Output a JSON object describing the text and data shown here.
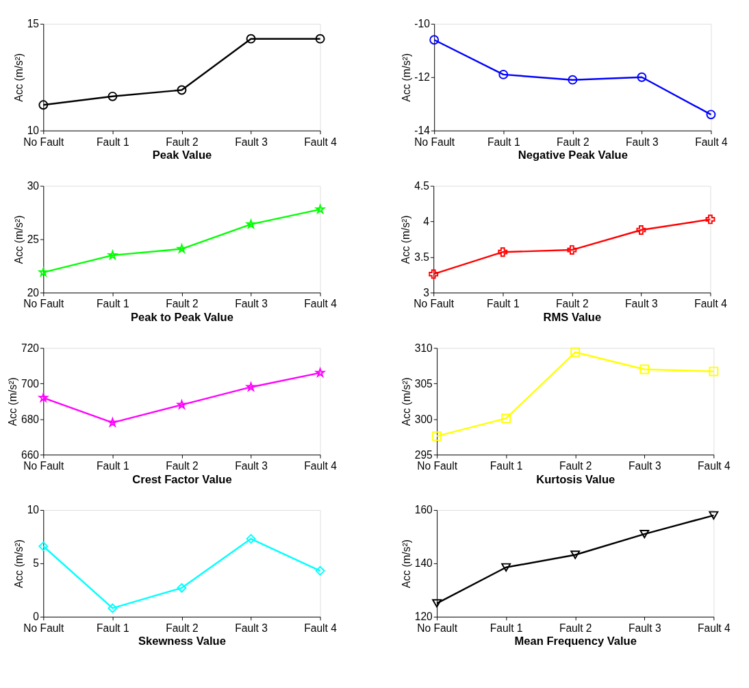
{
  "chart_data": [
    {
      "type": "line",
      "xlabel": "Peak Value",
      "ylabel": "Acc (m/s²)",
      "categories": [
        "No Fault",
        "Fault 1",
        "Fault 2",
        "Fault 3",
        "Fault 4"
      ],
      "series": [
        {
          "color": "#000000",
          "values": [
            11.2,
            11.6,
            11.9,
            14.3,
            14.3
          ]
        }
      ],
      "ylim": [
        10,
        15
      ],
      "yticks": [
        10,
        15
      ],
      "marker": "circle",
      "grid": false
    },
    {
      "type": "line",
      "xlabel": "Negative Peak Value",
      "ylabel": "Acc (m/s²)",
      "categories": [
        "No Fault",
        "Fault 1",
        "Fault 2",
        "Fault 3",
        "Fault 4"
      ],
      "series": [
        {
          "color": "#0000ff",
          "values": [
            -10.6,
            -11.9,
            -12.1,
            -12.0,
            -13.4
          ]
        }
      ],
      "ylim": [
        -14,
        -10
      ],
      "yticks": [
        -14,
        -12,
        -10
      ],
      "marker": "circle",
      "grid": false
    },
    {
      "type": "line",
      "xlabel": "Peak to Peak Value",
      "ylabel": "Acc (m/s²)",
      "categories": [
        "No Fault",
        "Fault 1",
        "Fault 2",
        "Fault 3",
        "Fault 4"
      ],
      "series": [
        {
          "color": "#00ff00",
          "values": [
            21.9,
            23.5,
            24.1,
            26.4,
            27.8
          ]
        }
      ],
      "ylim": [
        20,
        30
      ],
      "yticks": [
        20,
        25,
        30
      ],
      "marker": "star",
      "grid": false
    },
    {
      "type": "line",
      "xlabel": "RMS Value",
      "ylabel": "Acc (m/s²)",
      "categories": [
        "No Fault",
        "Fault 1",
        "Fault 2",
        "Fault 3",
        "Fault 4"
      ],
      "series": [
        {
          "color": "#ff0000",
          "values": [
            3.26,
            3.57,
            3.6,
            3.88,
            4.03
          ]
        }
      ],
      "ylim": [
        3,
        4.5
      ],
      "yticks": [
        3,
        3.5,
        4,
        4.5
      ],
      "marker": "cross",
      "grid": false
    },
    {
      "type": "line",
      "xlabel": "Crest Factor Value",
      "ylabel": "Acc (m/s²)",
      "categories": [
        "No Fault",
        "Fault 1",
        "Fault 2",
        "Fault 3",
        "Fault 4"
      ],
      "series": [
        {
          "color": "#ff00ff",
          "values": [
            692,
            678,
            688,
            698,
            706
          ]
        }
      ],
      "ylim": [
        660,
        720
      ],
      "yticks": [
        660,
        680,
        700,
        720
      ],
      "marker": "star",
      "grid": false
    },
    {
      "type": "line",
      "xlabel": "Kurtosis Value",
      "ylabel": "Acc (m/s²)",
      "categories": [
        "No Fault",
        "Fault 1",
        "Fault 2",
        "Fault 3",
        "Fault 4"
      ],
      "series": [
        {
          "color": "#ffff00",
          "values": [
            297.6,
            300.1,
            309.4,
            307.0,
            306.7
          ]
        }
      ],
      "ylim": [
        295,
        310
      ],
      "yticks": [
        295,
        300,
        305,
        310
      ],
      "marker": "square",
      "grid": false
    },
    {
      "type": "line",
      "xlabel": "Skewness Value",
      "ylabel": "Acc (m/s²)",
      "categories": [
        "No Fault",
        "Fault 1",
        "Fault 2",
        "Fault 3",
        "Fault 4"
      ],
      "series": [
        {
          "color": "#00ffff",
          "values": [
            6.6,
            0.8,
            2.7,
            7.3,
            4.3
          ]
        }
      ],
      "ylim": [
        0,
        10
      ],
      "yticks": [
        0,
        5,
        10
      ],
      "marker": "diamond",
      "grid": false
    },
    {
      "type": "line",
      "xlabel": "Mean Frequency Value",
      "ylabel": "Acc (m/s²)",
      "categories": [
        "No Fault",
        "Fault 1",
        "Fault 2",
        "Fault 3",
        "Fault 4"
      ],
      "series": [
        {
          "color": "#000000",
          "values": [
            125,
            138.5,
            143.2,
            151,
            158
          ]
        }
      ],
      "ylim": [
        120,
        160
      ],
      "yticks": [
        120,
        140,
        160
      ],
      "marker": "triangle",
      "grid": false
    }
  ]
}
